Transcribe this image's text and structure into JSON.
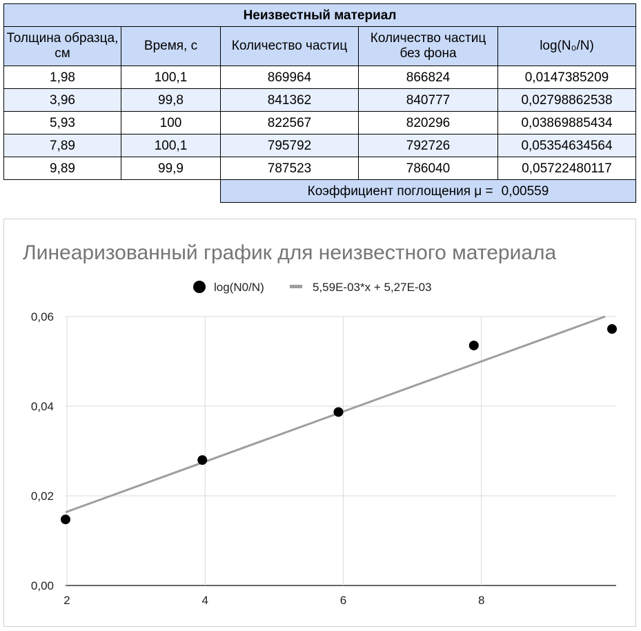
{
  "table": {
    "title": "Неизвестный материал",
    "headers": [
      "Толщина образца, см",
      "Время, с",
      "Количество частиц",
      "Количество частиц без фона",
      "log(N₀/N)"
    ],
    "rows": [
      [
        "1,98",
        "100,1",
        "869964",
        "866824",
        "0,0147385209"
      ],
      [
        "3,96",
        "99,8",
        "841362",
        "840777",
        "0,02798862538"
      ],
      [
        "5,93",
        "100",
        "822567",
        "820296",
        "0,03869885434"
      ],
      [
        "7,89",
        "100,1",
        "795792",
        "792726",
        "0,05354634564"
      ],
      [
        "9,89",
        "99,9",
        "787523",
        "786040",
        "0,05722480117"
      ]
    ],
    "coefficient_label": "Коэффициент поглощения μ =",
    "coefficient_value": "0,00559",
    "colors": {
      "header_bg": "#c9daf8",
      "alt_row_bg": "#e8f0fe"
    }
  },
  "chart_data": {
    "type": "scatter",
    "title": "Линеаризованный график для неизвестного материала",
    "legend_position": "top",
    "series": [
      {
        "name": "log(N0/N)",
        "color": "#000000",
        "x": [
          1.98,
          3.96,
          5.93,
          7.89,
          9.89
        ],
        "y": [
          0.0147385209,
          0.02798862538,
          0.03869885434,
          0.05354634564,
          0.05722480117
        ]
      }
    ],
    "trendline": {
      "name": "5,59E-03*x + 5,27E-03",
      "slope": 0.00559,
      "intercept": 0.00527,
      "color": "#9e9e9e"
    },
    "xlim": [
      1.98,
      9.95
    ],
    "ylim": [
      0,
      0.06
    ],
    "xticks": [
      {
        "v": 2,
        "label": "2"
      },
      {
        "v": 4,
        "label": "4"
      },
      {
        "v": 6,
        "label": "6"
      },
      {
        "v": 8,
        "label": "8"
      }
    ],
    "yticks": [
      {
        "v": 0,
        "label": "0,00"
      },
      {
        "v": 0.02,
        "label": "0,02"
      },
      {
        "v": 0.04,
        "label": "0,04"
      },
      {
        "v": 0.06,
        "label": "0,06"
      }
    ],
    "grid": true
  }
}
